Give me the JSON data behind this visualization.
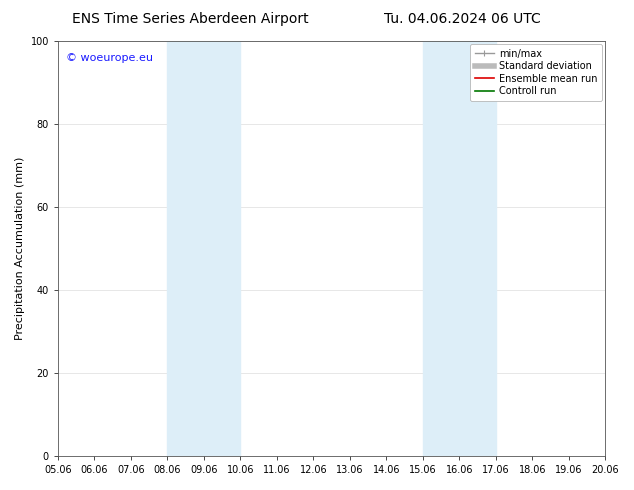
{
  "title_left": "ENS Time Series Aberdeen Airport",
  "title_right": "Tu. 04.06.2024 06 UTC",
  "ylabel": "Precipitation Accumulation (mm)",
  "watermark": "© woeurope.eu",
  "watermark_color": "#1a1aff",
  "xlim_start": 0,
  "xlim_end": 15,
  "ylim": [
    0,
    100
  ],
  "yticks": [
    0,
    20,
    40,
    60,
    80,
    100
  ],
  "xtick_labels": [
    "05.06",
    "06.06",
    "07.06",
    "08.06",
    "09.06",
    "10.06",
    "11.06",
    "12.06",
    "13.06",
    "14.06",
    "15.06",
    "16.06",
    "17.06",
    "18.06",
    "19.06",
    "20.06"
  ],
  "shaded_bands": [
    {
      "x_start": 3,
      "x_end": 5,
      "color": "#ddeef8",
      "alpha": 1.0
    },
    {
      "x_start": 10,
      "x_end": 12,
      "color": "#ddeef8",
      "alpha": 1.0
    }
  ],
  "legend_items": [
    {
      "label": "min/max",
      "color": "#999999",
      "lw": 1.0,
      "ls": "-",
      "use_marker": true
    },
    {
      "label": "Standard deviation",
      "color": "#bbbbbb",
      "lw": 4,
      "ls": "-",
      "use_marker": false
    },
    {
      "label": "Ensemble mean run",
      "color": "#dd0000",
      "lw": 1.2,
      "ls": "-",
      "use_marker": false
    },
    {
      "label": "Controll run",
      "color": "#007700",
      "lw": 1.2,
      "ls": "-",
      "use_marker": false
    }
  ],
  "bg_color": "#ffffff",
  "plot_bg_color": "#ffffff",
  "grid_color": "#dddddd",
  "title_fontsize": 10,
  "axis_label_fontsize": 8,
  "tick_fontsize": 7,
  "legend_fontsize": 7,
  "watermark_fontsize": 8
}
